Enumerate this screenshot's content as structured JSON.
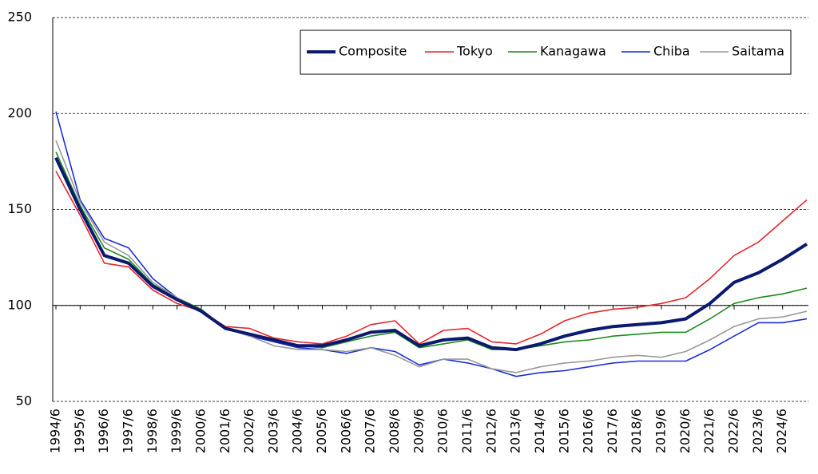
{
  "chart_data": {
    "type": "line",
    "categories": [
      "1994/6",
      "1995/6",
      "1996/6",
      "1997/6",
      "1998/6",
      "1999/6",
      "2000/6",
      "2001/6",
      "2002/6",
      "2003/6",
      "2004/6",
      "2005/6",
      "2006/6",
      "2007/6",
      "2008/6",
      "2009/6",
      "2010/6",
      "2011/6",
      "2012/6",
      "2013/6",
      "2014/6",
      "2015/6",
      "2016/6",
      "2017/6",
      "2018/6",
      "2019/6",
      "2020/6",
      "2021/6",
      "2022/6",
      "2023/6",
      "2024/6",
      null
    ],
    "series": [
      {
        "name": "Composite",
        "color": "#0b1a6e",
        "line_width": 4,
        "values": [
          177,
          150,
          126,
          122,
          110,
          103,
          97,
          88,
          85,
          82,
          79,
          79,
          82,
          86,
          87,
          79,
          82,
          83,
          78,
          77,
          80,
          84,
          87,
          89,
          90,
          91,
          93,
          101,
          112,
          117,
          124,
          132
        ]
      },
      {
        "name": "Tokyo",
        "color": "#e8262a",
        "line_width": 1.6,
        "values": [
          170,
          147,
          122,
          120,
          108,
          101,
          97,
          89,
          88,
          83,
          81,
          80,
          84,
          90,
          92,
          80,
          87,
          88,
          81,
          80,
          85,
          92,
          96,
          98,
          99,
          101,
          104,
          114,
          126,
          133,
          144,
          155
        ]
      },
      {
        "name": "Kanagawa",
        "color": "#1f8a1f",
        "line_width": 1.6,
        "values": [
          180,
          152,
          130,
          124,
          111,
          104,
          98,
          88,
          85,
          82,
          79,
          78,
          81,
          84,
          86,
          78,
          80,
          82,
          77,
          77,
          79,
          81,
          82,
          84,
          85,
          86,
          86,
          93,
          101,
          104,
          106,
          109
        ]
      },
      {
        "name": "Chiba",
        "color": "#1c2fd6",
        "line_width": 1.6,
        "values": [
          201,
          155,
          135,
          130,
          114,
          104,
          97,
          88,
          84,
          81,
          78,
          77,
          75,
          78,
          76,
          69,
          72,
          70,
          67,
          63,
          65,
          66,
          68,
          70,
          71,
          71,
          71,
          77,
          84,
          91,
          91,
          93
        ]
      },
      {
        "name": "Saitama",
        "color": "#9a9a9a",
        "line_width": 1.6,
        "values": [
          186,
          154,
          133,
          126,
          112,
          104,
          97,
          88,
          84,
          79,
          77,
          77,
          76,
          78,
          74,
          68,
          72,
          72,
          67,
          65,
          68,
          70,
          71,
          73,
          74,
          73,
          76,
          82,
          89,
          93,
          94,
          97
        ]
      }
    ],
    "ylim": [
      50,
      250
    ],
    "yticks": [
      50,
      100,
      150,
      200,
      250
    ],
    "grid": true,
    "x_axis_at": 100,
    "legend": "top-right"
  }
}
